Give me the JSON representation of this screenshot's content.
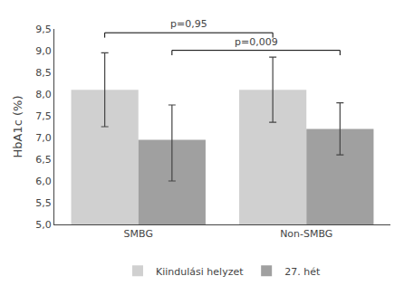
{
  "chart_data": {
    "type": "bar",
    "categories": [
      "SMBG",
      "Non-SMBG"
    ],
    "series": [
      {
        "name": "Kiindulási helyzet",
        "color": "#d0d0d0",
        "values": [
          8.1,
          8.1
        ],
        "error_up": [
          0.85,
          0.75
        ],
        "error_down": [
          0.85,
          0.75
        ]
      },
      {
        "name": "27. hét",
        "color": "#a0a0a0",
        "values": [
          6.95,
          7.2
        ],
        "error_up": [
          0.8,
          0.6
        ],
        "error_down": [
          0.95,
          0.6
        ]
      }
    ],
    "ylabel": "HbA1c (%)",
    "ylim": [
      5.0,
      9.5
    ],
    "yticks": [
      {
        "value": 5.0,
        "label": "5,0"
      },
      {
        "value": 5.5,
        "label": "5,5"
      },
      {
        "value": 6.0,
        "label": "6,0"
      },
      {
        "value": 6.5,
        "label": "6,5"
      },
      {
        "value": 7.0,
        "label": "7,0"
      },
      {
        "value": 7.5,
        "label": "7,5"
      },
      {
        "value": 8.0,
        "label": "8,0"
      },
      {
        "value": 8.5,
        "label": "8,5"
      },
      {
        "value": 9.0,
        "label": "9,0"
      },
      {
        "value": 9.5,
        "label": "9,5"
      }
    ],
    "annotations": [
      "p=0,95",
      "p=0,009"
    ],
    "grid": false,
    "legend": "bottom"
  }
}
